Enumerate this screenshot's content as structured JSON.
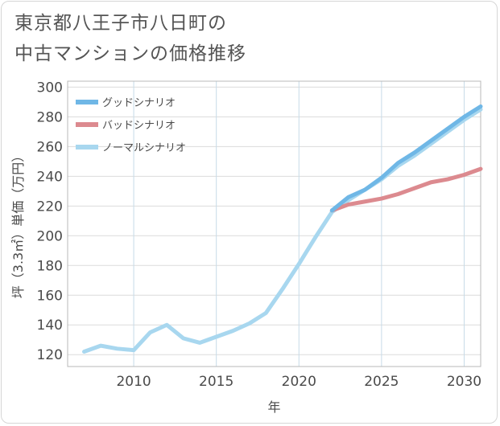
{
  "chart_data": {
    "type": "line",
    "title_line1": "東京都八王子市八日町の",
    "title_line2": "中古マンションの価格推移",
    "xlabel": "年",
    "ylabel": "坪（3.3㎡）単価（万円）",
    "xlim": [
      2006,
      2031
    ],
    "ylim": [
      112,
      304
    ],
    "xticks": [
      2010,
      2015,
      2020,
      2025,
      2030
    ],
    "yticks": [
      120,
      140,
      160,
      180,
      200,
      220,
      240,
      260,
      280,
      300
    ],
    "xtick_labels": [
      "2010",
      "2015",
      "2020",
      "2025",
      "2030"
    ],
    "ytick_labels": [
      "120",
      "140",
      "160",
      "180",
      "200",
      "220",
      "240",
      "260",
      "280",
      "300"
    ],
    "legend_position": "top-left",
    "series": [
      {
        "name": "グッドシナリオ",
        "color": "#6fb7e6",
        "x": [
          2022,
          2023,
          2024,
          2025,
          2026,
          2027,
          2028,
          2029,
          2030,
          2031
        ],
        "values": [
          217,
          226,
          231,
          239,
          249,
          256,
          264,
          272,
          280,
          287
        ]
      },
      {
        "name": "バッドシナリオ",
        "color": "#dc8a8f",
        "x": [
          2022,
          2023,
          2024,
          2025,
          2026,
          2027,
          2028,
          2029,
          2030,
          2031
        ],
        "values": [
          217,
          221,
          223,
          225,
          228,
          232,
          236,
          238,
          241,
          245
        ]
      },
      {
        "name": "ノーマルシナリオ",
        "color": "#a8d7ef",
        "x": [
          2007,
          2008,
          2009,
          2010,
          2011,
          2012,
          2013,
          2014,
          2015,
          2016,
          2017,
          2018,
          2019,
          2020,
          2021,
          2022,
          2023,
          2024,
          2025,
          2026,
          2027,
          2028,
          2029,
          2030,
          2031
        ],
        "values": [
          122,
          126,
          124,
          123,
          135,
          140,
          131,
          128,
          132,
          136,
          141,
          148,
          164,
          181,
          199,
          216,
          224,
          231,
          238,
          247,
          254,
          262,
          270,
          278,
          285
        ]
      }
    ]
  }
}
